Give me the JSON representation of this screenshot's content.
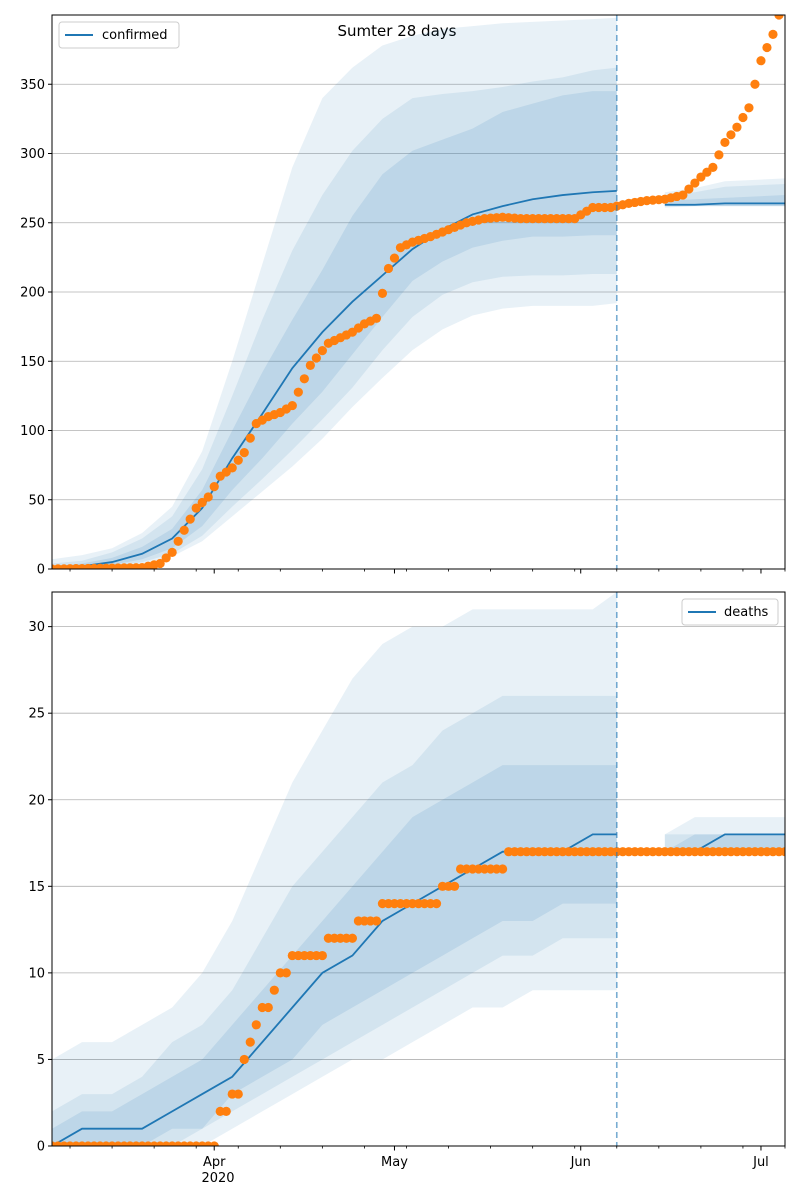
{
  "figure": {
    "title": "Sumter 28 days",
    "x_tick_labels": [
      {
        "date": "2020-04-01",
        "label": "Apr"
      },
      {
        "date": "2020-05-01",
        "label": "May"
      },
      {
        "date": "2020-06-01",
        "label": "Jun"
      },
      {
        "date": "2020-07-01",
        "label": "Jul"
      }
    ],
    "x_year_label": "2020",
    "forecast_start_date": "2020-06-07",
    "colors": {
      "model": "#1f77b4",
      "band": "#1f77b4",
      "observed": "#ff7f0e",
      "grid": "#b0b0b0",
      "forecast_line": "#1f77b4"
    }
  },
  "chart_data": [
    {
      "type": "line",
      "legend": "confirmed",
      "legend_position": "top-left",
      "grid": "horizontal",
      "xlim": [
        "2020-03-05",
        "2020-07-05"
      ],
      "ylim": [
        0,
        400
      ],
      "y_ticks": [
        0,
        50,
        100,
        150,
        200,
        250,
        300,
        350
      ],
      "band_quantiles": [
        "5-95",
        "10-90",
        "25-75"
      ],
      "model": {
        "x": [
          "2020-03-05",
          "2020-03-10",
          "2020-03-15",
          "2020-03-20",
          "2020-03-25",
          "2020-03-30",
          "2020-04-04",
          "2020-04-09",
          "2020-04-14",
          "2020-04-19",
          "2020-04-24",
          "2020-04-29",
          "2020-05-04",
          "2020-05-09",
          "2020-05-14",
          "2020-05-19",
          "2020-05-24",
          "2020-05-29",
          "2020-06-03",
          "2020-06-07",
          "2020-06-15",
          "2020-06-20",
          "2020-06-25",
          "2020-07-05"
        ],
        "median": [
          1,
          2,
          5,
          11,
          22,
          44,
          80,
          112,
          145,
          171,
          193,
          212,
          231,
          245,
          256,
          262,
          267,
          270,
          272,
          273,
          263,
          263,
          264,
          264
        ],
        "q25": [
          0,
          1,
          3,
          7,
          15,
          31,
          57,
          80,
          105,
          128,
          155,
          182,
          208,
          222,
          232,
          237,
          240,
          240,
          241,
          241,
          261,
          262,
          262,
          262
        ],
        "q75": [
          2,
          4,
          8,
          16,
          29,
          57,
          100,
          142,
          180,
          216,
          255,
          285,
          302,
          310,
          318,
          330,
          336,
          342,
          345,
          345,
          266,
          267,
          268,
          270
        ],
        "q10": [
          0,
          0,
          2,
          5,
          11,
          24,
          45,
          65,
          86,
          108,
          131,
          158,
          182,
          198,
          207,
          211,
          212,
          212,
          213,
          213,
          262,
          262,
          262,
          262
        ],
        "q90": [
          4,
          6,
          12,
          22,
          38,
          72,
          125,
          180,
          230,
          270,
          302,
          325,
          340,
          343,
          345,
          348,
          352,
          355,
          360,
          362,
          270,
          272,
          276,
          278
        ],
        "q05": [
          0,
          0,
          1,
          4,
          9,
          20,
          38,
          56,
          74,
          94,
          117,
          138,
          158,
          173,
          183,
          188,
          190,
          190,
          190,
          192,
          262,
          262,
          262,
          262
        ],
        "q95": [
          7,
          10,
          15,
          26,
          45,
          85,
          150,
          220,
          290,
          340,
          362,
          378,
          385,
          390,
          392,
          394,
          395,
          396,
          397,
          398,
          272,
          275,
          280,
          282
        ]
      },
      "observed": {
        "x": [
          "2020-03-05",
          "2020-03-20",
          "2020-03-23",
          "2020-03-25",
          "2020-03-27",
          "2020-03-29",
          "2020-03-31",
          "2020-04-02",
          "2020-04-04",
          "2020-04-06",
          "2020-04-08",
          "2020-04-10",
          "2020-04-12",
          "2020-04-14",
          "2020-04-17",
          "2020-04-20",
          "2020-04-22",
          "2020-04-24",
          "2020-04-26",
          "2020-04-28",
          "2020-04-30",
          "2020-05-02",
          "2020-05-04",
          "2020-05-07",
          "2020-05-10",
          "2020-05-13",
          "2020-05-16",
          "2020-05-19",
          "2020-05-22",
          "2020-05-25",
          "2020-05-28",
          "2020-05-31",
          "2020-06-03",
          "2020-06-06",
          "2020-06-09",
          "2020-06-12",
          "2020-06-15",
          "2020-06-18",
          "2020-06-21",
          "2020-06-23",
          "2020-06-25",
          "2020-06-27",
          "2020-06-29",
          "2020-07-01",
          "2020-07-03",
          "2020-07-04"
        ],
        "y": [
          0,
          1,
          4,
          12,
          28,
          44,
          52,
          67,
          73,
          84,
          105,
          110,
          113,
          118,
          147,
          163,
          167,
          171,
          177,
          181,
          217,
          232,
          236,
          240,
          245,
          250,
          253,
          254,
          253,
          253,
          253,
          253,
          261,
          261,
          264,
          266,
          267,
          270,
          283,
          290,
          308,
          319,
          333,
          367,
          386,
          400
        ]
      }
    },
    {
      "type": "line",
      "legend": "deaths",
      "legend_position": "top-right",
      "grid": "horizontal",
      "xlim": [
        "2020-03-05",
        "2020-07-05"
      ],
      "ylim": [
        0,
        32
      ],
      "y_ticks": [
        0,
        5,
        10,
        15,
        20,
        25,
        30
      ],
      "band_quantiles": [
        "5-95",
        "10-90",
        "25-75"
      ],
      "model": {
        "x": [
          "2020-03-05",
          "2020-03-10",
          "2020-03-15",
          "2020-03-20",
          "2020-03-25",
          "2020-03-30",
          "2020-04-04",
          "2020-04-09",
          "2020-04-14",
          "2020-04-19",
          "2020-04-24",
          "2020-04-29",
          "2020-05-04",
          "2020-05-09",
          "2020-05-14",
          "2020-05-19",
          "2020-05-24",
          "2020-05-29",
          "2020-06-03",
          "2020-06-07",
          "2020-06-15",
          "2020-06-20",
          "2020-06-25",
          "2020-07-05"
        ],
        "median": [
          0,
          1,
          1,
          1,
          2,
          3,
          4,
          6,
          8,
          10,
          11,
          13,
          14,
          15,
          16,
          17,
          17,
          17,
          18,
          18,
          17,
          17,
          18,
          18
        ],
        "q25": [
          0,
          0,
          0,
          0,
          1,
          1,
          3,
          4,
          5,
          7,
          8,
          9,
          10,
          11,
          12,
          13,
          13,
          14,
          14,
          14,
          17,
          17,
          17,
          17
        ],
        "q75": [
          1,
          2,
          2,
          3,
          4,
          5,
          7,
          9,
          11,
          13,
          15,
          17,
          19,
          20,
          21,
          22,
          22,
          22,
          22,
          22,
          17,
          18,
          18,
          18
        ],
        "q10": [
          0,
          0,
          0,
          0,
          0,
          1,
          2,
          3,
          4,
          5,
          6,
          7,
          8,
          9,
          10,
          11,
          11,
          12,
          12,
          12,
          17,
          17,
          17,
          17
        ],
        "q90": [
          2,
          3,
          3,
          4,
          6,
          7,
          9,
          12,
          15,
          17,
          19,
          21,
          22,
          24,
          25,
          26,
          26,
          26,
          26,
          26,
          18,
          18,
          18,
          18
        ],
        "q05": [
          0,
          0,
          0,
          0,
          0,
          0,
          1,
          2,
          3,
          4,
          5,
          5,
          6,
          7,
          8,
          8,
          9,
          9,
          9,
          9,
          17,
          17,
          17,
          17
        ],
        "q95": [
          5,
          6,
          6,
          7,
          8,
          10,
          13,
          17,
          21,
          24,
          27,
          29,
          30,
          30,
          31,
          31,
          31,
          31,
          31,
          32,
          18,
          19,
          19,
          19
        ]
      },
      "observed": {
        "x": [
          "2020-03-05",
          "2020-04-01",
          "2020-04-02",
          "2020-04-05",
          "2020-04-06",
          "2020-04-08",
          "2020-04-11",
          "2020-04-14",
          "2020-04-17",
          "2020-04-23",
          "2020-04-27",
          "2020-04-30",
          "2020-05-08",
          "2020-05-10",
          "2020-05-13",
          "2020-05-18",
          "2020-05-21",
          "2020-06-07",
          "2020-07-05"
        ],
        "y": [
          0,
          0,
          2,
          3,
          5,
          7,
          9,
          11,
          11,
          12,
          13,
          14,
          14,
          15,
          16,
          16,
          17,
          17,
          17
        ]
      }
    }
  ]
}
